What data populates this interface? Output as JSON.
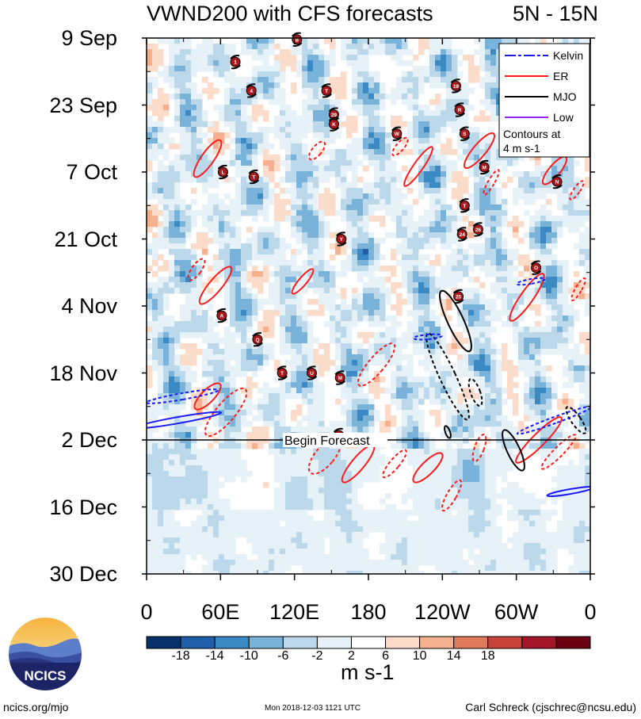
{
  "chart_data": {
    "type": "heatmap",
    "title": "VWND200 with CFS forecasts",
    "lat_band": "5N - 15N",
    "y_ticks": [
      "9 Sep",
      "23 Sep",
      "7 Oct",
      "21 Oct",
      "4 Nov",
      "18 Nov",
      "2 Dec",
      "16 Dec",
      "30 Dec"
    ],
    "x_ticks": [
      "0",
      "60E",
      "120E",
      "180",
      "120W",
      "60W",
      "0"
    ],
    "x_range_deg_east": [
      0,
      360
    ],
    "y_range_days_from_9_Sep": [
      0,
      112
    ],
    "colorbar_levels": [
      -18,
      -14,
      -10,
      -6,
      -2,
      2,
      6,
      10,
      14,
      18
    ],
    "colorbar_labels": [
      "-18",
      "-14",
      "-10",
      "-6",
      "-2",
      "2",
      "6",
      "10",
      "14",
      "18"
    ],
    "colorbar_colors": [
      "#08306b",
      "#1f5ea8",
      "#3b8ac4",
      "#7ab3d9",
      "#bcd9ec",
      "#e6f1f8",
      "#ffffff",
      "#fbdccb",
      "#f4b08f",
      "#e07a5c",
      "#c8433a",
      "#a3162a",
      "#6b0012"
    ],
    "units": "m s-1",
    "legend": {
      "position": "top-right",
      "entries": [
        {
          "label": "Kelvin",
          "color": "#1a1aff",
          "dashed": true
        },
        {
          "label": "ER",
          "color": "#ff1a1a",
          "dashed": false
        },
        {
          "label": "MJO",
          "color": "#000000",
          "dashed": false
        },
        {
          "label": "Low",
          "color": "#a020f0",
          "dashed": false
        }
      ],
      "note_line1": "Contours at",
      "note_line2": "4 m s-1"
    },
    "forecast_begin": {
      "label": "Begin Forecast",
      "date": "2 Dec",
      "day": 84
    },
    "storm_markers": [
      {
        "label": "B",
        "lon": 122,
        "day": 0.3
      },
      {
        "label": "1",
        "lon": 72,
        "day": 5
      },
      {
        "label": "4",
        "lon": 85,
        "day": 11
      },
      {
        "label": "T",
        "lon": 146,
        "day": 11
      },
      {
        "label": "19",
        "lon": 251,
        "day": 10
      },
      {
        "label": "R",
        "lon": 254,
        "day": 15
      },
      {
        "label": "29",
        "lon": 152,
        "day": 16
      },
      {
        "label": "K",
        "lon": 152,
        "day": 18
      },
      {
        "label": "W",
        "lon": 203,
        "day": 20
      },
      {
        "label": "S",
        "lon": 258,
        "day": 20
      },
      {
        "label": "M",
        "lon": 274,
        "day": 27
      },
      {
        "label": "L",
        "lon": 62,
        "day": 28
      },
      {
        "label": "T",
        "lon": 87,
        "day": 29
      },
      {
        "label": "N",
        "lon": 333,
        "day": 30
      },
      {
        "label": "T",
        "lon": 258,
        "day": 35
      },
      {
        "label": "24",
        "lon": 256,
        "day": 41
      },
      {
        "label": "26",
        "lon": 269,
        "day": 40
      },
      {
        "label": "Y",
        "lon": 158,
        "day": 42
      },
      {
        "label": "O",
        "lon": 316,
        "day": 48
      },
      {
        "label": "25",
        "lon": 253,
        "day": 54
      },
      {
        "label": "A",
        "lon": 61,
        "day": 58
      },
      {
        "label": "Q",
        "lon": 90,
        "day": 63
      },
      {
        "label": "T",
        "lon": 110,
        "day": 70
      },
      {
        "label": "U",
        "lon": 134,
        "day": 70
      },
      {
        "label": "M",
        "lon": 157,
        "day": 71
      },
      {
        "label": "O",
        "lon": 156,
        "day": 83
      }
    ]
  },
  "axes_text": {
    "xlabel": "",
    "ylabel": ""
  },
  "logo": {
    "text": "NCICS"
  },
  "footer": {
    "left": "ncics.org/mjo",
    "center": "Mon 2018-12-03 1121 UTC",
    "right": "Carl Schreck (cjschrec@ncsu.edu)"
  }
}
